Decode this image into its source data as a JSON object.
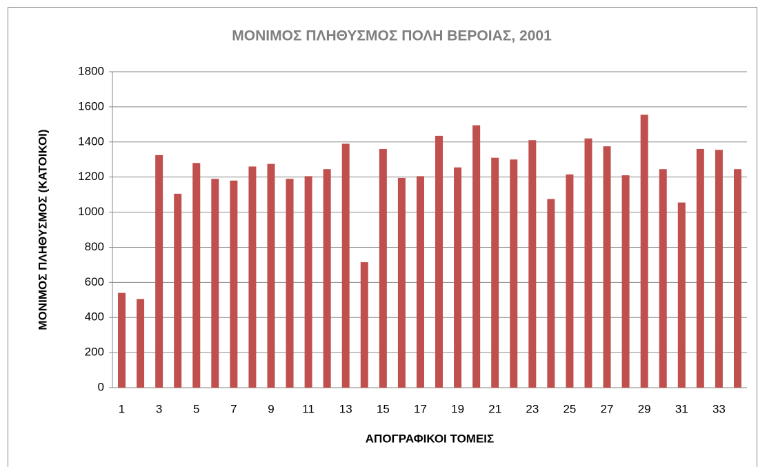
{
  "chart_data": {
    "type": "bar",
    "title": "ΜΟΝΙΜΟΣ ΠΛΗΘΥΣΜΟΣ ΠΟΛΗ ΒΕΡΟΙΑΣ, 2001",
    "x_label": "ΑΠΟΓΡΑΦΙΚΟΙ ΤΟΜΕΙΣ",
    "y_label": "ΜΟΝΙΜΟΣ ΠΛΗΘΥΣΜΟΣ (ΚΑΤΟΙΚΟΙ)",
    "categories": [
      1,
      null,
      3,
      null,
      5,
      null,
      7,
      null,
      9,
      null,
      11,
      null,
      13,
      null,
      15,
      null,
      17,
      null,
      19,
      null,
      21,
      null,
      23,
      null,
      25,
      null,
      27,
      null,
      29,
      null,
      31,
      null,
      33,
      null
    ],
    "values": [
      540,
      505,
      1325,
      1105,
      1280,
      1190,
      1180,
      1260,
      1275,
      1190,
      1205,
      1245,
      1390,
      715,
      1360,
      1195,
      1205,
      1435,
      1255,
      1495,
      1310,
      1300,
      1410,
      1075,
      1215,
      1420,
      1375,
      1210,
      1555,
      1245,
      1055,
      1360,
      1355,
      1245
    ],
    "color": "#c0504d",
    "ylim": [
      0,
      1800
    ],
    "yticks": [
      0,
      200,
      400,
      600,
      800,
      1000,
      1200,
      1400,
      1600,
      1800
    ],
    "grid": true
  }
}
